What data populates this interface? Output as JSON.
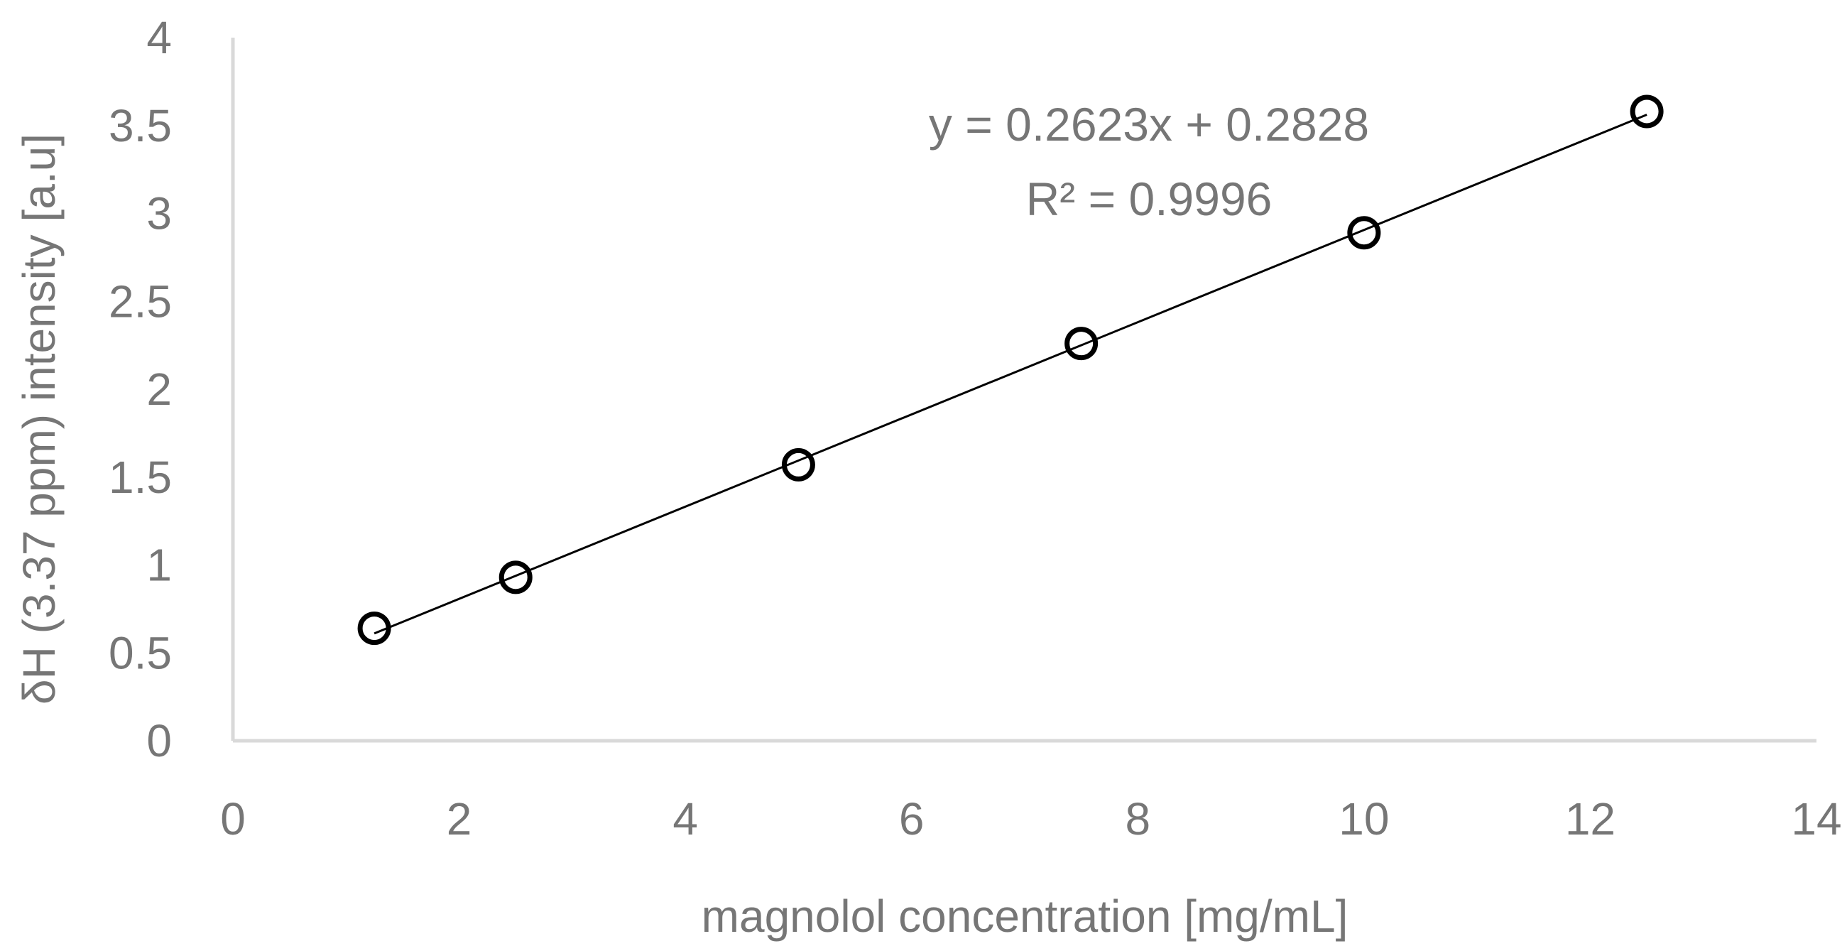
{
  "chart_data": {
    "type": "scatter",
    "xlabel": "magnolol concentration [mg/mL]",
    "ylabel": "δH (3.37 ppm) intensity [a.u]",
    "xlim": [
      0,
      14
    ],
    "ylim": [
      0,
      4
    ],
    "x_ticks": [
      "0",
      "2",
      "4",
      "6",
      "8",
      "10",
      "12",
      "14"
    ],
    "y_ticks": [
      "0",
      "0.5",
      "1",
      "1.5",
      "2",
      "2.5",
      "3",
      "3.5",
      "4"
    ],
    "grid": false,
    "legend": "none",
    "series": [
      {
        "marker": "open-circle",
        "color": "#000000",
        "points": [
          {
            "x": 1.25,
            "y": 0.64
          },
          {
            "x": 2.5,
            "y": 0.93
          },
          {
            "x": 5.0,
            "y": 1.57
          },
          {
            "x": 7.5,
            "y": 2.26
          },
          {
            "x": 10.0,
            "y": 2.89
          },
          {
            "x": 12.5,
            "y": 3.58
          }
        ]
      }
    ],
    "trendline": {
      "type": "linear",
      "slope": 0.2623,
      "intercept": 0.2828,
      "x_range": [
        1.25,
        12.5
      ],
      "color": "#000000"
    },
    "annotations": {
      "equation": "y = 0.2623x + 0.2828",
      "r_squared": "R² = 0.9996"
    },
    "colors": {
      "axis": "#d9d9d9",
      "text": "#767676",
      "marks": "#000000"
    }
  }
}
